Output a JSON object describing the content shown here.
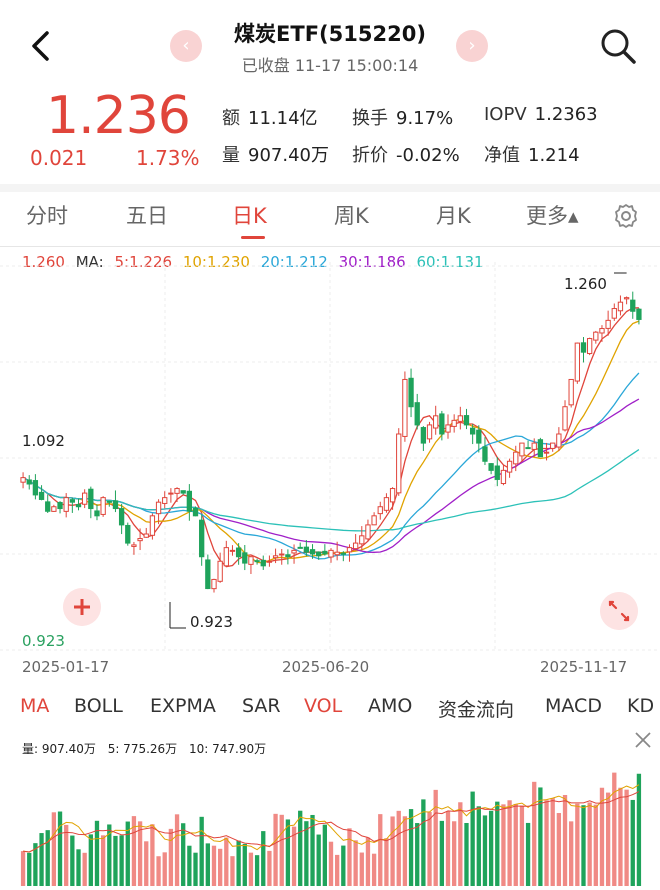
{
  "header": {
    "title": "煤炭ETF(515220)",
    "subtitle": "已收盘 11-17 15:00:14",
    "prev_icon": "chevron-left-icon",
    "next_icon": "chevron-right-icon"
  },
  "quote": {
    "price": "1.236",
    "change_abs": "0.021",
    "change_pct": "1.73%",
    "color_up": "#e0453b",
    "stats": [
      {
        "key": "额",
        "value": "11.14亿"
      },
      {
        "key": "换手",
        "value": "9.17%"
      },
      {
        "key": "IOPV",
        "value": "1.2363"
      },
      {
        "key": "量",
        "value": "907.40万"
      },
      {
        "key": "折价",
        "value": "-0.02%"
      },
      {
        "key": "净值",
        "value": "1.214"
      }
    ]
  },
  "period_tabs": [
    {
      "label": "分时"
    },
    {
      "label": "五日"
    },
    {
      "label": "日K"
    },
    {
      "label": "周K"
    },
    {
      "label": "月K"
    },
    {
      "label": "更多▴"
    }
  ],
  "active_period": "日K",
  "ma_legend": {
    "current": "1.260",
    "label": "MA:",
    "items": [
      {
        "text": "5:1.226",
        "color": "#e0453b"
      },
      {
        "text": "10:1.230",
        "color": "#e0a300"
      },
      {
        "text": "20:1.212",
        "color": "#2aa7d8"
      },
      {
        "text": "30:1.186",
        "color": "#a020c8"
      },
      {
        "text": "60:1.131",
        "color": "#2cc1b8"
      }
    ]
  },
  "chart_data": {
    "type": "candlestick",
    "y_high_label": "1.260",
    "y_mid_label": "1.092",
    "y_low_label": "0.923",
    "marker_low": "0.923",
    "x_labels": [
      "2025-01-17",
      "2025-06-20",
      "2025-11-17"
    ],
    "ylim": [
      0.89,
      1.275
    ],
    "closes": [
      1.062,
      1.055,
      1.043,
      1.038,
      1.025,
      1.03,
      1.028,
      1.04,
      1.035,
      1.03,
      1.045,
      1.028,
      1.02,
      1.04,
      1.035,
      1.028,
      1.01,
      0.99,
      0.988,
      0.995,
      1.0,
      1.02,
      1.035,
      1.04,
      1.045,
      1.05,
      1.045,
      1.025,
      1.02,
      0.975,
      0.94,
      0.95,
      0.97,
      0.985,
      0.982,
      0.975,
      0.968,
      0.975,
      0.97,
      0.965,
      0.97,
      0.976,
      0.978,
      0.975,
      0.982,
      0.985,
      0.98,
      0.978,
      0.976,
      0.978,
      0.982,
      0.98,
      0.978,
      0.985,
      0.99,
      0.998,
      1.01,
      1.02,
      1.03,
      1.04,
      1.05,
      1.11,
      1.17,
      1.14,
      1.12,
      1.1,
      1.12,
      1.13,
      1.11,
      1.12,
      1.125,
      1.13,
      1.12,
      1.11,
      1.1,
      1.08,
      1.07,
      1.06,
      1.07,
      1.08,
      1.09,
      1.1,
      1.095,
      1.1,
      1.085,
      1.09,
      1.1,
      1.11,
      1.14,
      1.17,
      1.21,
      1.2,
      1.215,
      1.222,
      1.226,
      1.235,
      1.248,
      1.255,
      1.26,
      1.245,
      1.236
    ],
    "volume_legend": [
      {
        "text": "量: 907.40万",
        "color": "#222222"
      },
      {
        "text": "5: 775.26万",
        "color": "#e0a300"
      },
      {
        "text": "10: 747.90万",
        "color": "#e0453b"
      }
    ]
  },
  "indicator_tabs": [
    {
      "label": "MA",
      "active": true
    },
    {
      "label": "BOLL",
      "active": false
    },
    {
      "label": "EXPMA",
      "active": false
    },
    {
      "label": "SAR",
      "active": false
    },
    {
      "label": "VOL",
      "active": true
    },
    {
      "label": "AMO",
      "active": false
    },
    {
      "label": "资金流向",
      "active": false
    },
    {
      "label": "MACD",
      "active": false
    },
    {
      "label": "KD",
      "active": false
    }
  ]
}
